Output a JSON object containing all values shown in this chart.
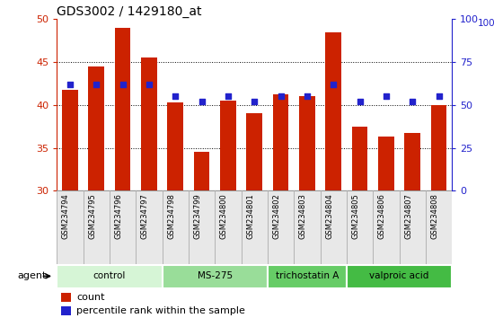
{
  "title": "GDS3002 / 1429180_at",
  "samples": [
    "GSM234794",
    "GSM234795",
    "GSM234796",
    "GSM234797",
    "GSM234798",
    "GSM234799",
    "GSM234800",
    "GSM234801",
    "GSM234802",
    "GSM234803",
    "GSM234804",
    "GSM234805",
    "GSM234806",
    "GSM234807",
    "GSM234808"
  ],
  "count_values": [
    41.8,
    44.5,
    49.0,
    45.5,
    40.3,
    34.5,
    40.5,
    39.0,
    41.2,
    41.0,
    48.5,
    37.5,
    36.3,
    36.7,
    40.0
  ],
  "percentile_values": [
    62,
    62,
    62,
    62,
    55,
    52,
    55,
    52,
    55,
    55,
    62,
    52,
    55,
    52,
    55
  ],
  "ymin": 30,
  "ymax": 50,
  "yticks_left": [
    30,
    35,
    40,
    45,
    50
  ],
  "yticks_right": [
    0,
    25,
    50,
    75,
    100
  ],
  "bar_color": "#cc2200",
  "dot_color": "#2222cc",
  "agent_groups": [
    {
      "label": "control",
      "start": 0,
      "end": 3,
      "color": "#d6f5d6"
    },
    {
      "label": "MS-275",
      "start": 4,
      "end": 7,
      "color": "#99dd99"
    },
    {
      "label": "trichostatin A",
      "start": 8,
      "end": 10,
      "color": "#66cc66"
    },
    {
      "label": "valproic acid",
      "start": 11,
      "end": 14,
      "color": "#44bb44"
    }
  ],
  "legend_count_color": "#cc2200",
  "legend_dot_color": "#2222cc",
  "left_axis_color": "#cc2200",
  "right_axis_color": "#2222cc",
  "gridline_ticks": [
    35,
    40,
    45
  ],
  "bar_width": 0.6
}
